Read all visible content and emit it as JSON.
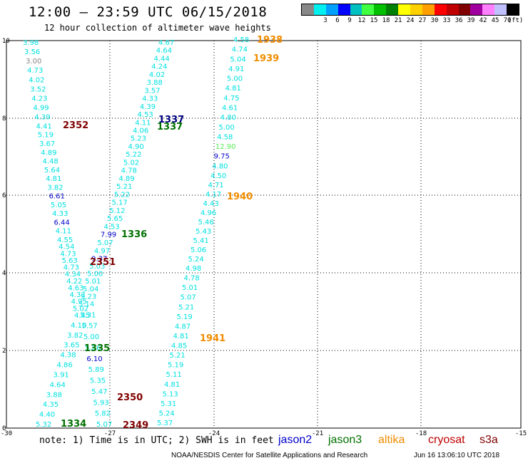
{
  "header": {
    "title": "12:00 – 23:59 UTC 06/15/2018",
    "subtitle": "12 hour collection of altimeter wave heights"
  },
  "legend": {
    "unit": "(ft)",
    "colors": [
      "#888888",
      "#00f0f0",
      "#00a0ff",
      "#0000ff",
      "#00c0c0",
      "#40ff40",
      "#00c000",
      "#008000",
      "#ffff00",
      "#ffd000",
      "#ffa000",
      "#ff0000",
      "#c00000",
      "#800000",
      "#a000a0",
      "#ff80ff",
      "#c0c0ff",
      "#000000"
    ],
    "labels": [
      "3",
      "6",
      "9",
      "12",
      "15",
      "18",
      "21",
      "24",
      "27",
      "30",
      "33",
      "36",
      "39",
      "42",
      "45",
      "70"
    ]
  },
  "map": {
    "x_ticks": [
      "-30",
      "-27",
      "-24",
      "-21",
      "-18",
      "-15"
    ],
    "y_ticks": [
      "0",
      "2",
      "4",
      "6",
      "8",
      "10"
    ],
    "swh_colors": {
      "cyan": "#00e0e0",
      "blue": "#0000cc",
      "lime": "#55ee55"
    },
    "track1_values": [
      "3.98",
      "3.56",
      "3.00",
      "4.73",
      "4.02",
      "3.52",
      "4.23",
      "4.99",
      "4.39",
      "4.41",
      "5.19",
      "3.67",
      "4.89",
      "4.48",
      "5.64",
      "4.81",
      "3.82",
      "6.61",
      "5.05",
      "4.33",
      "6.44",
      "4.11",
      "4.55",
      "4.54",
      "4.73",
      "5.63",
      "4.73",
      "4.34",
      "4.22",
      "4.63",
      "4.33",
      "4.95",
      "5.02",
      "4.45",
      "4.10",
      "3.82",
      "3.65",
      "4.38",
      "4.86",
      "3.91",
      "4.64",
      "3.88",
      "4.35",
      "4.40",
      "5.32"
    ],
    "track2_values": [
      "4.67",
      "4.64",
      "4.44",
      "4.24",
      "4.02",
      "3.88",
      "3.57",
      "4.33",
      "4.39",
      "4.53",
      "4.11",
      "4.06",
      "5.23",
      "4.90",
      "5.22",
      "5.02",
      "4.78",
      "4.89",
      "5.21",
      "5.22",
      "5.17",
      "5.12",
      "5.65",
      "4.53",
      "7.99",
      "5.07",
      "4.97",
      "9.37",
      "5.03",
      "5.00",
      "5.01",
      "5.04",
      "5.23",
      "5.14",
      "5.31",
      "5.57",
      "5.00",
      "5.86",
      "6.10",
      "5.89",
      "5.35",
      "5.47",
      "5.93",
      "5.82",
      "5.07"
    ],
    "track3_values": [
      "4.58",
      "4.74",
      "5.04",
      "4.91",
      "5.00",
      "4.81",
      "4.75",
      "4.61",
      "4.80",
      "5.00",
      "4.58",
      "12.90",
      "9.75",
      "4.80",
      "4.50",
      "4.71",
      "4.17",
      "4.43",
      "4.96",
      "5.46",
      "5.43",
      "5.41",
      "5.06",
      "5.24",
      "4.98",
      "4.78",
      "5.01",
      "5.07",
      "5.21",
      "5.19",
      "4.87",
      "4.81",
      "4.85",
      "5.21",
      "5.19",
      "5.11",
      "4.81",
      "5.13",
      "5.31",
      "5.24",
      "5.37"
    ],
    "passes": [
      {
        "label": "1938",
        "color": "#f08c00"
      },
      {
        "label": "1939",
        "color": "#f08c00"
      },
      {
        "label": "1940",
        "color": "#f08c00"
      },
      {
        "label": "1941",
        "color": "#f08c00"
      },
      {
        "label": "2352",
        "color": "#800000"
      },
      {
        "label": "2351",
        "color": "#800000"
      },
      {
        "label": "2350",
        "color": "#800000"
      },
      {
        "label": "2349",
        "color": "#800000"
      },
      {
        "label": "1337",
        "color": "#000080"
      },
      {
        "label": "1337",
        "color": "#007000"
      },
      {
        "label": "1336",
        "color": "#007000"
      },
      {
        "label": "1335",
        "color": "#007000"
      },
      {
        "label": "1334",
        "color": "#007000"
      }
    ]
  },
  "footer": {
    "note": "note: 1) Time is in UTC; 2) SWH is in feet",
    "satellites": [
      {
        "name": "jason2",
        "color": "#0000cc"
      },
      {
        "name": "jason3",
        "color": "#007000"
      },
      {
        "name": "altika",
        "color": "#f08c00"
      },
      {
        "name": "cryosat",
        "color": "#c00000"
      },
      {
        "name": "s3a",
        "color": "#800000"
      }
    ],
    "credit": "NOAA/NESDIS Center for Satellite Applications and Research",
    "timestamp": "Jun 16 13:06:10 UTC 2018"
  }
}
